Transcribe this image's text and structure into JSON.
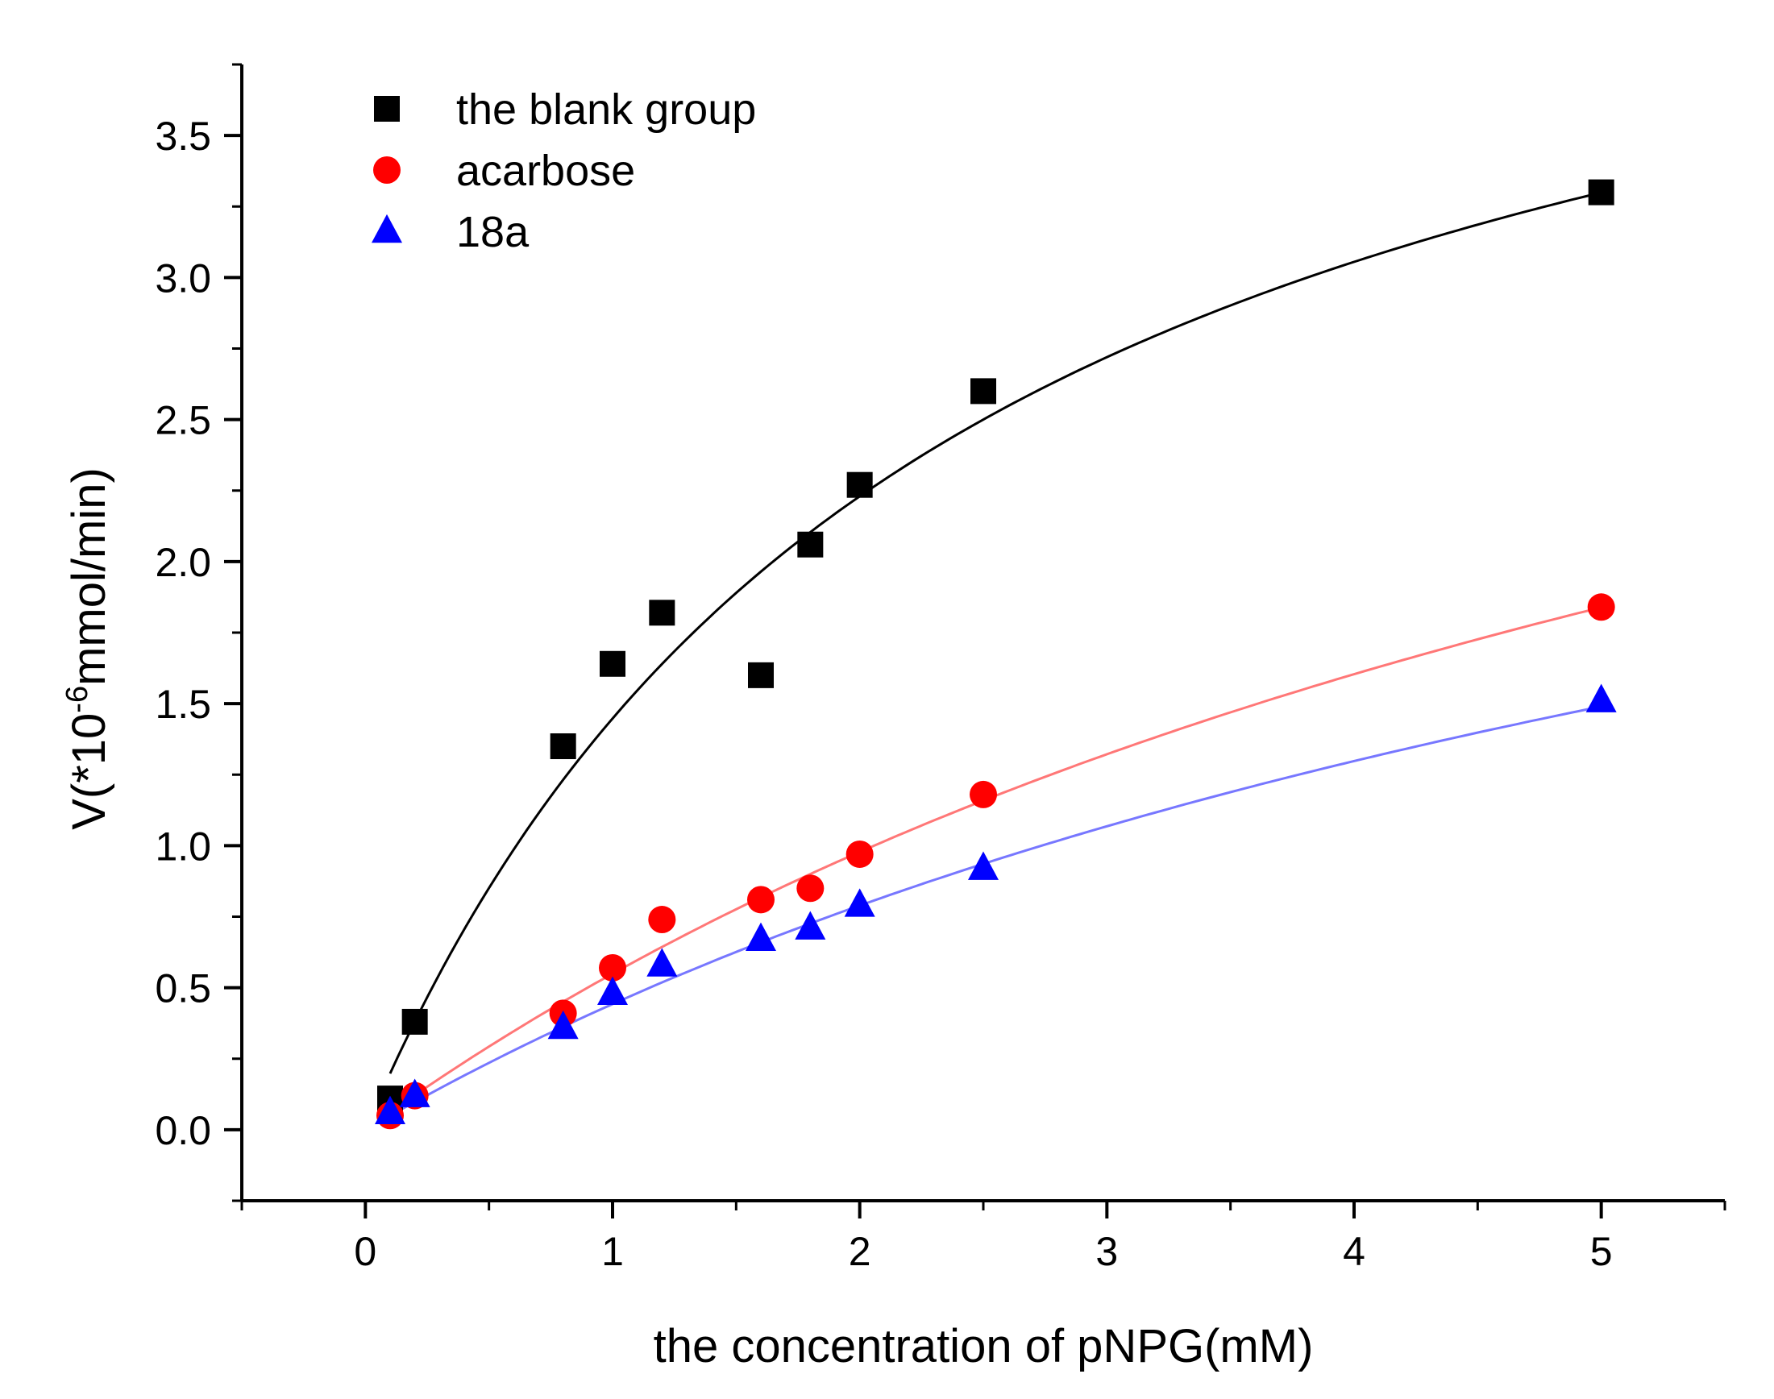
{
  "chart_data": {
    "type": "scatter",
    "xlabel": "the concentration of pNPG(mM)",
    "ylabel": {
      "prefix": "V(*10",
      "exponent": "-6",
      "suffix": "mmol/min)"
    },
    "xlim": [
      -0.5,
      5.5
    ],
    "ylim": [
      -0.25,
      3.75
    ],
    "x_ticks": [
      0,
      1,
      2,
      3,
      4,
      5
    ],
    "x_tick_labels": [
      "0",
      "1",
      "2",
      "3",
      "4",
      "5"
    ],
    "y_ticks": [
      0.0,
      0.5,
      1.0,
      1.5,
      2.0,
      2.5,
      3.0,
      3.5
    ],
    "y_tick_labels": [
      "0.0",
      "0.5",
      "1.0",
      "1.5",
      "2.0",
      "2.5",
      "3.0",
      "3.5"
    ],
    "grid": false,
    "legend_position": "top-left",
    "series": [
      {
        "name": "the blank group",
        "marker": "square",
        "color": "#000000",
        "fit_color": "#000000",
        "fit_model": "michaelis-menten",
        "fit_params": {
          "vmax": 4.85,
          "km": 2.35
        },
        "x": [
          0.1,
          0.2,
          0.8,
          1.0,
          1.2,
          1.6,
          1.8,
          2.0,
          2.5,
          5.0
        ],
        "y": [
          0.11,
          0.38,
          1.35,
          1.64,
          1.82,
          1.6,
          2.06,
          2.27,
          2.6,
          3.3
        ]
      },
      {
        "name": "acarbose",
        "marker": "circle",
        "color": "#ff0000",
        "fit_color": "#ff7777",
        "fit_model": "michaelis-menten",
        "fit_params": {
          "vmax": 4.45,
          "km": 7.1
        },
        "x": [
          0.1,
          0.2,
          0.8,
          1.0,
          1.2,
          1.6,
          1.8,
          2.0,
          2.5,
          5.0
        ],
        "y": [
          0.05,
          0.12,
          0.41,
          0.57,
          0.74,
          0.81,
          0.85,
          0.97,
          1.18,
          1.84
        ]
      },
      {
        "name": "18a",
        "marker": "triangle",
        "color": "#0000ff",
        "fit_color": "#7777ff",
        "fit_model": "michaelis-menten",
        "fit_params": {
          "vmax": 3.65,
          "km": 7.25
        },
        "x": [
          0.1,
          0.2,
          0.8,
          1.0,
          1.2,
          1.6,
          1.8,
          2.0,
          2.5,
          5.0
        ],
        "y": [
          0.06,
          0.12,
          0.36,
          0.48,
          0.58,
          0.67,
          0.71,
          0.79,
          0.92,
          1.51
        ]
      }
    ]
  }
}
